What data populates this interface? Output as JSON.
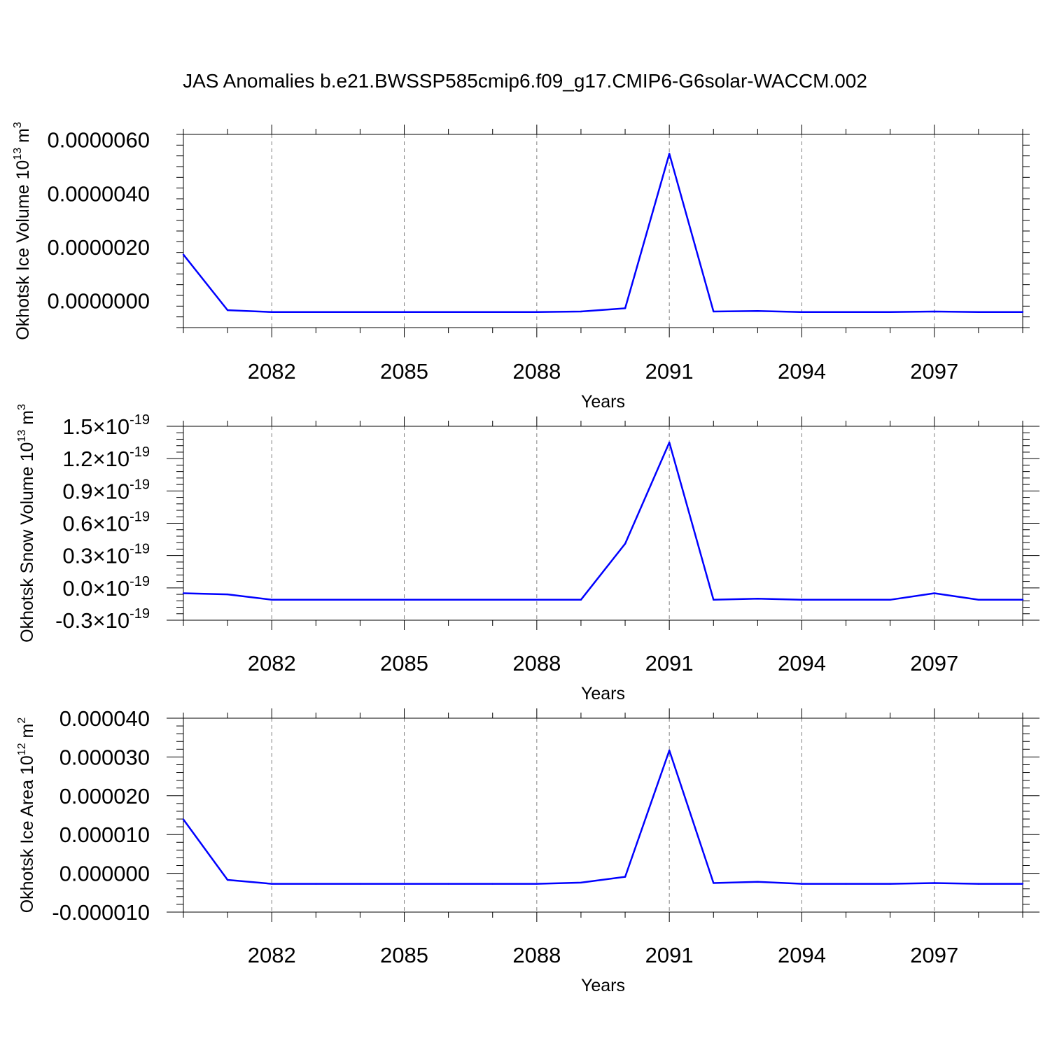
{
  "title": "JAS Anomalies b.e21.BWSSP585cmip6.f09_g17.CMIP6-G6solar-WACCM.002",
  "colors": {
    "line": "#0000ff",
    "axis": "#000000",
    "grid": "#7f7f7f"
  },
  "chart_data": [
    {
      "type": "line",
      "ylabel": "Okhotsk Ice Volume 10",
      "ylabel_exp": "13",
      "ylabel_unit": " m",
      "ylabel_unit_exp": "3",
      "xlabel": "Years",
      "xlim": [
        2080,
        2099
      ],
      "ylim": [
        -1e-06,
        6.2e-06
      ],
      "x_ticks": [
        "2082",
        "2085",
        "2088",
        "2091",
        "2094",
        "2097"
      ],
      "y_ticks": [
        {
          "value": 6e-06,
          "label": "0.0000060"
        },
        {
          "value": 4e-06,
          "label": "0.0000040"
        },
        {
          "value": 2e-06,
          "label": "0.0000020"
        },
        {
          "value": 0.0,
          "label": "0.0000000"
        }
      ],
      "grid": "vertical dashed at labeled years",
      "series": [
        {
          "x": [
            2080,
            2081,
            2082,
            2083,
            2084,
            2085,
            2086,
            2087,
            2088,
            2089,
            2090,
            2091,
            2092,
            2093,
            2094,
            2095,
            2096,
            2097,
            2098,
            2099
          ],
          "values": [
            1.72e-06,
            -3.5e-07,
            -4.2e-07,
            -4.2e-07,
            -4.2e-07,
            -4.2e-07,
            -4.2e-07,
            -4.2e-07,
            -4.2e-07,
            -4e-07,
            -2.8e-07,
            5.48e-06,
            -4e-07,
            -3.8e-07,
            -4.2e-07,
            -4.2e-07,
            -4.2e-07,
            -4e-07,
            -4.2e-07,
            -4.2e-07
          ]
        }
      ]
    },
    {
      "type": "line",
      "ylabel": "Okhotsk Snow Volume 10",
      "ylabel_exp": "13",
      "ylabel_unit": " m",
      "ylabel_unit_exp": "3",
      "xlabel": "Years",
      "xlim": [
        2080,
        2099
      ],
      "ylim": [
        -3e-20,
        1.5e-19
      ],
      "x_ticks": [
        "2082",
        "2085",
        "2088",
        "2091",
        "2094",
        "2097"
      ],
      "y_ticks": [
        {
          "value": 1.5e-19,
          "mantissa": "1.5",
          "times": "×10",
          "exp": "-19"
        },
        {
          "value": 1.2e-19,
          "mantissa": "1.2",
          "times": "×10",
          "exp": "-19"
        },
        {
          "value": 9e-20,
          "mantissa": "0.9",
          "times": "×10",
          "exp": "-19"
        },
        {
          "value": 6e-20,
          "mantissa": "0.6",
          "times": "×10",
          "exp": "-19"
        },
        {
          "value": 3e-20,
          "mantissa": "0.3",
          "times": "×10",
          "exp": "-19"
        },
        {
          "value": 0,
          "mantissa": "0.0",
          "times": "×10",
          "exp": "-19"
        },
        {
          "value": -3e-20,
          "mantissa": "-0.3",
          "times": "×10",
          "exp": "-19"
        }
      ],
      "grid": "vertical dashed at labeled years",
      "series": [
        {
          "x": [
            2080,
            2081,
            2082,
            2083,
            2084,
            2085,
            2086,
            2087,
            2088,
            2089,
            2090,
            2091,
            2092,
            2093,
            2094,
            2095,
            2096,
            2097,
            2098,
            2099
          ],
          "values": [
            -5e-21,
            -6e-21,
            -1.1e-20,
            -1.1e-20,
            -1.1e-20,
            -1.1e-20,
            -1.1e-20,
            -1.1e-20,
            -1.1e-20,
            -1.1e-20,
            4.1e-20,
            1.35e-19,
            -1.1e-20,
            -1e-20,
            -1.1e-20,
            -1.1e-20,
            -1.1e-20,
            -5e-21,
            -1.1e-20,
            -1.1e-20
          ]
        }
      ]
    },
    {
      "type": "line",
      "ylabel": "Okhotsk Ice Area 10",
      "ylabel_exp": "12",
      "ylabel_unit": " m",
      "ylabel_unit_exp": "2",
      "xlabel": "Years",
      "xlim": [
        2080,
        2099
      ],
      "ylim": [
        -1e-05,
        4e-05
      ],
      "x_ticks": [
        "2082",
        "2085",
        "2088",
        "2091",
        "2094",
        "2097"
      ],
      "y_ticks": [
        {
          "value": 4e-05,
          "label": "0.000040"
        },
        {
          "value": 3e-05,
          "label": "0.000030"
        },
        {
          "value": 2e-05,
          "label": "0.000020"
        },
        {
          "value": 1e-05,
          "label": "0.000010"
        },
        {
          "value": 0.0,
          "label": "0.000000"
        },
        {
          "value": -1e-05,
          "label": "-0.000010"
        }
      ],
      "grid": "vertical dashed at labeled years",
      "series": [
        {
          "x": [
            2080,
            2081,
            2082,
            2083,
            2084,
            2085,
            2086,
            2087,
            2088,
            2089,
            2090,
            2091,
            2092,
            2093,
            2094,
            2095,
            2096,
            2097,
            2098,
            2099
          ],
          "values": [
            1.39e-05,
            -1.7e-06,
            -2.7e-06,
            -2.7e-06,
            -2.7e-06,
            -2.7e-06,
            -2.7e-06,
            -2.7e-06,
            -2.7e-06,
            -2.4e-06,
            -9e-07,
            3.17e-05,
            -2.5e-06,
            -2.2e-06,
            -2.7e-06,
            -2.7e-06,
            -2.7e-06,
            -2.5e-06,
            -2.7e-06,
            -2.7e-06
          ]
        }
      ]
    }
  ]
}
